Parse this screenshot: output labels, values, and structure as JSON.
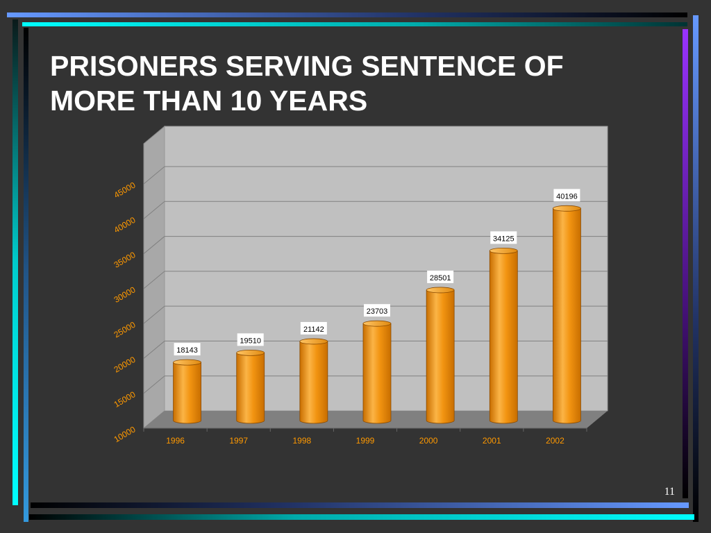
{
  "slide": {
    "title": "PRISONERS SERVING  SENTENCE OF\nMORE THAN 10 YEARS",
    "page_number": "11"
  },
  "colors": {
    "background": "#333333",
    "title": "#ffffff",
    "bar": "#f29411",
    "bar_dark": "#c86e00",
    "bar_light": "#fbb446",
    "axis_text": "#ff9900",
    "wall": "#c0c0c0",
    "floor": "#808080",
    "gridline": "#808080",
    "accent_cyan": "#00ffff",
    "accent_blue": "#6699ff",
    "accent_purple": "#9933ff"
  },
  "chart_data": {
    "type": "bar",
    "style": "3d-cylinder",
    "categories": [
      "1996",
      "1997",
      "1998",
      "1999",
      "2000",
      "2001",
      "2002"
    ],
    "values": [
      18143,
      19510,
      21142,
      23703,
      28501,
      34125,
      40196
    ],
    "data_labels": [
      "18143",
      "19510",
      "21142",
      "23703",
      "28501",
      "34125",
      "40196"
    ],
    "y_ticks": [
      "10000",
      "15000",
      "20000",
      "25000",
      "30000",
      "35000",
      "40000",
      "45000"
    ],
    "ylim": [
      10000,
      45000
    ],
    "grid": true,
    "legend": "none",
    "title": "PRISONERS SERVING  SENTENCE OF MORE THAN 10 YEARS",
    "xlabel": "",
    "ylabel": ""
  }
}
